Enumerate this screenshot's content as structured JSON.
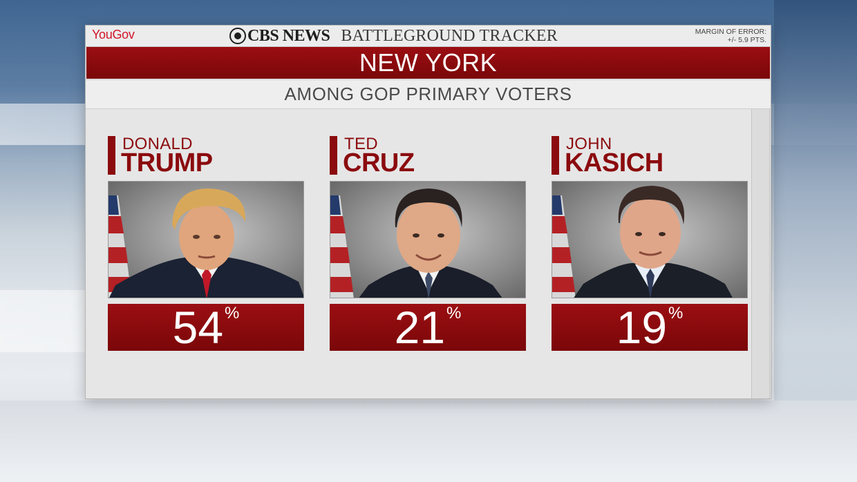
{
  "header": {
    "yougov_logo": "YouGov",
    "network": "CBS NEWS",
    "program": "BATTLEGROUND TRACKER",
    "margin_label": "MARGIN OF ERROR:",
    "margin_value": "+/- 5.9 PTS."
  },
  "title": "NEW YORK",
  "subtitle": "AMONG GOP PRIMARY VOTERS",
  "candidates": [
    {
      "first": "DONALD",
      "last": "TRUMP",
      "percent": "54",
      "percent_sign": "%"
    },
    {
      "first": "TED",
      "last": "CRUZ",
      "percent": "21",
      "percent_sign": "%"
    },
    {
      "first": "JOHN",
      "last": "KASICH",
      "percent": "19",
      "percent_sign": "%"
    }
  ],
  "colors": {
    "accent_red": "#8b0b0e",
    "yougov_red": "#d2152a",
    "panel_grey": "#e6e6e6"
  },
  "icons": [
    "cbs-eye-icon",
    "american-flag-icon"
  ]
}
